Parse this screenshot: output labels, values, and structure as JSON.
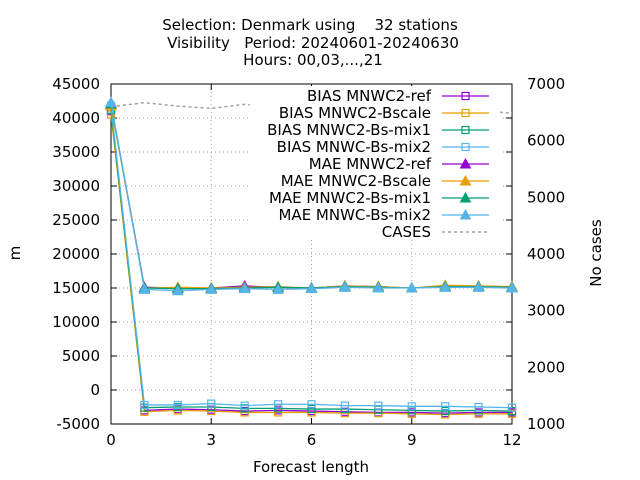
{
  "chart_data": {
    "type": "line",
    "title_lines": [
      "Selection: Denmark using    32 stations",
      "Visibility   Period: 20240601-20240630",
      "Hours: 00,03,...,21"
    ],
    "xlabel": "Forecast length",
    "ylabel": "m",
    "y2label": "No cases",
    "xlim": [
      0,
      12
    ],
    "ylim": [
      -5000,
      45000
    ],
    "y2lim": [
      1000,
      7000
    ],
    "xticks": [
      0,
      3,
      6,
      9,
      12
    ],
    "yticks": [
      -5000,
      0,
      5000,
      10000,
      15000,
      20000,
      25000,
      30000,
      35000,
      40000,
      45000
    ],
    "y2ticks": [
      1000,
      2000,
      3000,
      4000,
      5000,
      6000,
      7000
    ],
    "grid": true,
    "legend_position": "top-right",
    "x": [
      0,
      1,
      2,
      3,
      4,
      5,
      6,
      7,
      8,
      9,
      10,
      11,
      12
    ],
    "series": [
      {
        "name": "BIAS MNWC2-ref",
        "color": "#9400d3",
        "marker": "square-open",
        "axis": "y1",
        "values": [
          41000,
          -3000,
          -2800,
          -2900,
          -3100,
          -3000,
          -3100,
          -3200,
          -3300,
          -3300,
          -3400,
          -3300,
          -3300
        ]
      },
      {
        "name": "BIAS MNWC2-Bscale",
        "color": "#e69f00",
        "marker": "square-open",
        "axis": "y1",
        "values": [
          40500,
          -3200,
          -3000,
          -3100,
          -3300,
          -3300,
          -3300,
          -3400,
          -3400,
          -3500,
          -3600,
          -3500,
          -3500
        ]
      },
      {
        "name": "BIAS MNWC2-Bs-mix1",
        "color": "#009e73",
        "marker": "square-open",
        "axis": "y1",
        "values": [
          41200,
          -2600,
          -2500,
          -2500,
          -2700,
          -2700,
          -2800,
          -2800,
          -2900,
          -3000,
          -3100,
          -3000,
          -3100
        ]
      },
      {
        "name": "BIAS MNWC-Bs-mix2",
        "color": "#56b4e9",
        "marker": "square-open",
        "axis": "y1",
        "values": [
          41800,
          -2200,
          -2200,
          -2000,
          -2300,
          -2100,
          -2100,
          -2300,
          -2300,
          -2400,
          -2400,
          -2500,
          -2600
        ]
      },
      {
        "name": "MAE MNWC2-ref",
        "color": "#9400d3",
        "marker": "triangle",
        "axis": "y1",
        "values": [
          42000,
          15100,
          15000,
          15000,
          15300,
          15100,
          15000,
          15300,
          15200,
          15000,
          15200,
          15200,
          15100
        ]
      },
      {
        "name": "MAE MNWC2-Bscale",
        "color": "#e69f00",
        "marker": "triangle",
        "axis": "y1",
        "values": [
          41800,
          15000,
          15100,
          15000,
          15100,
          15200,
          15000,
          15300,
          15200,
          15000,
          15400,
          15300,
          15200
        ]
      },
      {
        "name": "MAE MNWC2-Bs-mix1",
        "color": "#009e73",
        "marker": "triangle",
        "axis": "y1",
        "values": [
          42100,
          15000,
          14900,
          14900,
          15000,
          15100,
          15000,
          15200,
          15100,
          15000,
          15200,
          15200,
          15100
        ]
      },
      {
        "name": "MAE MNWC-Bs-mix2",
        "color": "#56b4e9",
        "marker": "triangle",
        "axis": "y1",
        "values": [
          42300,
          14800,
          14600,
          14800,
          14900,
          14800,
          14900,
          15100,
          15000,
          15000,
          15100,
          15100,
          15000
        ]
      },
      {
        "name": "CASES",
        "color": "#a0a0a0",
        "marker": "none",
        "dash": true,
        "axis": "y2",
        "values": [
          6600,
          6670,
          6610,
          6570,
          6640,
          6610,
          6560,
          6590,
          6550,
          6540,
          6570,
          6540,
          6480
        ]
      }
    ]
  }
}
